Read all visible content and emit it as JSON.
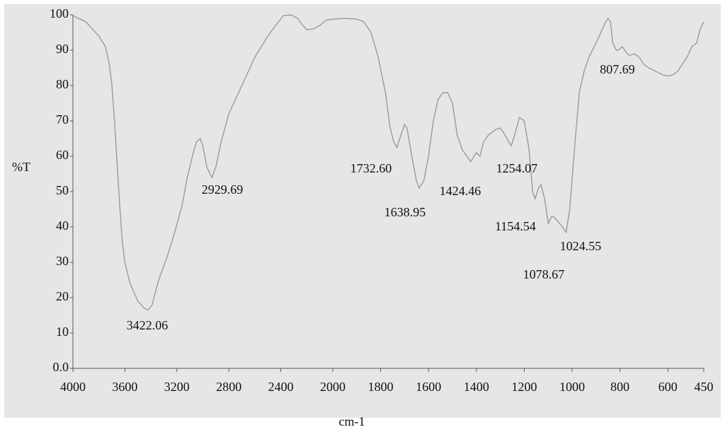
{
  "chart_data": {
    "type": "line",
    "xlabel": "cm-1",
    "ylabel": "%T",
    "xlim": [
      4000,
      450
    ],
    "x_scale_break": 2000,
    "ylim": [
      0,
      100
    ],
    "xticks": [
      4000,
      3600,
      3200,
      2800,
      2400,
      2000,
      1800,
      1600,
      1400,
      1200,
      1000,
      800,
      600,
      450
    ],
    "yticks": [
      {
        "value": 0,
        "label": "0.0"
      },
      10,
      20,
      30,
      40,
      50,
      60,
      70,
      80,
      90,
      100
    ],
    "series": [
      {
        "color": "#9a9a9a",
        "x": [
          4000,
          3900,
          3800,
          3750,
          3720,
          3700,
          3680,
          3660,
          3640,
          3620,
          3600,
          3560,
          3500,
          3450,
          3422,
          3390,
          3340,
          3280,
          3220,
          3160,
          3120,
          3080,
          3050,
          3020,
          3000,
          2970,
          2930,
          2900,
          2860,
          2800,
          2700,
          2600,
          2500,
          2440,
          2380,
          2320,
          2270,
          2230,
          2200,
          2150,
          2100,
          2050,
          2000,
          1950,
          1900,
          1870,
          1840,
          1810,
          1780,
          1760,
          1745,
          1732,
          1715,
          1700,
          1690,
          1670,
          1650,
          1639,
          1620,
          1600,
          1580,
          1560,
          1540,
          1520,
          1500,
          1480,
          1460,
          1440,
          1424,
          1410,
          1400,
          1385,
          1370,
          1350,
          1320,
          1300,
          1280,
          1260,
          1254,
          1240,
          1220,
          1200,
          1180,
          1165,
          1155,
          1140,
          1130,
          1115,
          1100,
          1085,
          1079,
          1065,
          1040,
          1025,
          1010,
          990,
          970,
          950,
          930,
          900,
          880,
          860,
          850,
          840,
          830,
          815,
          808,
          790,
          770,
          760,
          740,
          720,
          700,
          680,
          650,
          620,
          600,
          580,
          560,
          540,
          520,
          500,
          480,
          465,
          450
        ],
        "values": [
          99.8,
          98,
          94,
          91,
          86,
          80,
          70,
          58,
          46,
          36,
          30,
          24,
          19,
          17,
          16.5,
          18,
          25,
          31,
          38,
          46,
          54,
          60,
          64,
          65,
          63,
          57,
          54,
          57,
          64,
          72,
          80,
          88,
          94,
          97,
          99.8,
          100,
          99,
          97,
          95.8,
          96,
          97,
          98.5,
          98.8,
          99,
          98.8,
          98,
          95,
          88,
          78,
          68,
          64,
          62.5,
          66,
          69,
          68,
          60,
          53,
          51,
          53,
          60,
          70,
          76,
          78,
          78,
          75,
          66,
          62,
          60,
          58.5,
          60,
          61,
          60,
          64,
          66,
          67.5,
          68,
          66,
          63.5,
          63,
          66,
          71,
          70,
          62,
          50,
          48,
          51,
          52,
          48,
          41,
          43,
          43,
          42,
          40,
          38.5,
          45,
          62,
          78,
          84,
          88,
          92,
          95,
          98,
          99,
          98,
          92,
          90,
          90,
          91,
          89,
          88.5,
          89,
          88,
          86,
          85,
          84,
          83,
          82.7,
          83,
          84,
          86,
          88,
          91,
          92,
          96,
          98
        ]
      }
    ],
    "annotations": [
      "3422.06",
      "2929.69",
      "1732.60",
      "1638.95",
      "1424.46",
      "1254.07",
      "1154.54",
      "1078.67",
      "1024.55",
      "807.69"
    ]
  }
}
